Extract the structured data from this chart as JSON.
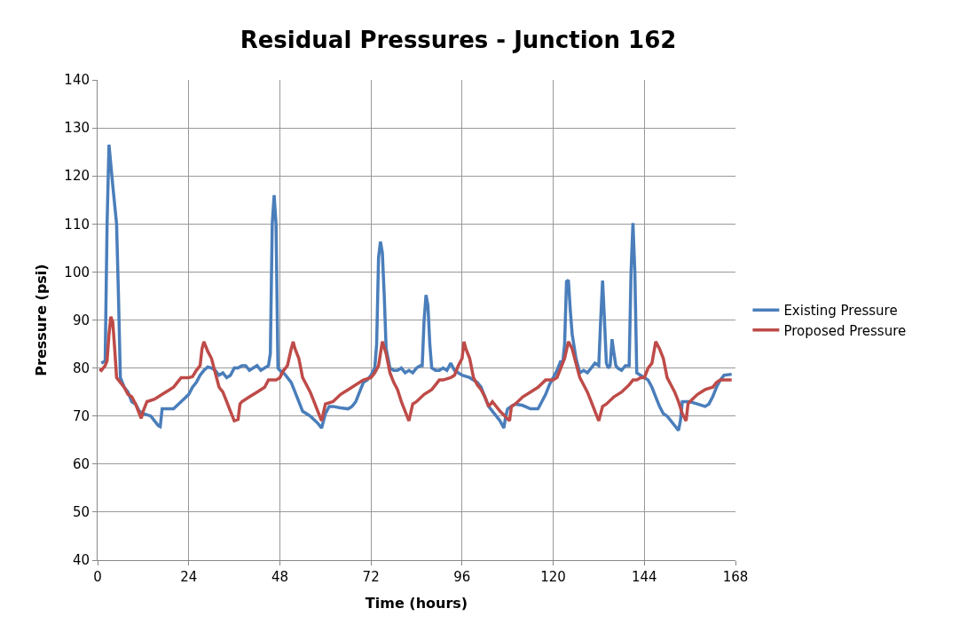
{
  "chart_data": {
    "type": "line",
    "title": "Residual Pressures - Junction 162",
    "xlabel": "Time (hours)",
    "ylabel": "Pressure (psi)",
    "xlim": [
      0,
      168
    ],
    "xticks": [
      0,
      24,
      48,
      72,
      96,
      120,
      144,
      168
    ],
    "ylim": [
      40,
      140
    ],
    "yticks": [
      40,
      50,
      60,
      70,
      80,
      90,
      100,
      110,
      120,
      130,
      140
    ],
    "grid": true,
    "legend": "right",
    "marker": "none",
    "line_style": "solid",
    "series": [
      {
        "name": "Existing Pressure",
        "color": "#4a7ebb",
        "x": [
          1,
          2,
          2.5,
          3,
          4,
          5,
          5.5,
          6,
          7,
          8,
          9,
          10,
          11,
          12,
          14,
          15,
          16,
          16.5,
          17,
          18,
          20,
          22,
          24,
          25,
          26,
          27,
          28,
          29,
          30,
          31,
          32,
          33,
          34,
          35,
          36,
          37,
          38,
          39,
          40,
          41,
          42,
          43,
          44,
          45,
          45.5,
          46,
          46.5,
          47,
          47.5,
          48,
          49,
          50,
          51,
          52,
          53,
          54,
          56,
          58,
          59,
          60,
          61,
          62,
          64,
          66,
          67,
          68,
          69,
          70,
          71,
          72,
          73,
          73.5,
          74,
          74.5,
          75,
          75.5,
          76,
          77,
          78,
          79,
          80,
          81,
          82,
          83,
          84,
          85,
          85.5,
          86,
          86.5,
          87,
          87.5,
          88,
          89,
          90,
          91,
          92,
          93,
          94,
          96,
          98,
          100,
          101,
          102,
          103,
          104,
          105,
          106,
          107,
          107.5,
          108,
          110,
          112,
          114,
          116,
          117,
          118,
          119,
          120,
          121,
          122,
          122.5,
          123,
          123.5,
          124,
          124.5,
          125,
          126,
          127,
          128,
          129,
          130,
          131,
          132,
          132.5,
          133,
          133.5,
          134,
          134.5,
          135,
          135.5,
          136,
          136.5,
          137,
          138,
          139,
          140,
          140.5,
          141,
          141.5,
          142,
          143,
          144,
          145,
          146,
          147,
          148,
          149,
          150,
          151,
          152,
          153,
          153.5,
          154,
          155,
          156,
          158,
          160,
          161,
          162,
          163,
          164,
          165,
          167
        ],
        "values": [
          81,
          81.5,
          110,
          126.5,
          118,
          110,
          95,
          78,
          76,
          75,
          73,
          72.5,
          71,
          70.5,
          70,
          69,
          68,
          67.8,
          71.5,
          71.5,
          71.5,
          73,
          74.5,
          76,
          77,
          78.5,
          79.5,
          80.2,
          80,
          79.5,
          78.5,
          79,
          78,
          78.5,
          80,
          80,
          80.5,
          80.5,
          79.5,
          80,
          80.5,
          79.5,
          80,
          80.5,
          83,
          110,
          116,
          110,
          80,
          79.5,
          79,
          78,
          77,
          75,
          73,
          71,
          70,
          68.5,
          67.5,
          70.5,
          72,
          72,
          71.7,
          71.5,
          72,
          73,
          75,
          77,
          77.5,
          78.5,
          80,
          85,
          103,
          106.3,
          104,
          95,
          84,
          80,
          79.5,
          79.5,
          80,
          79,
          79.5,
          79,
          80,
          80.5,
          80.5,
          90,
          95.2,
          93,
          85,
          80,
          79.5,
          79.5,
          80,
          79.5,
          81,
          79.5,
          78.5,
          78,
          77,
          76,
          74,
          72,
          71,
          70,
          69,
          67.5,
          70,
          71.5,
          72.5,
          72.2,
          71.5,
          71.5,
          73,
          74.5,
          76.5,
          78,
          79.5,
          81.5,
          81,
          85,
          98,
          98.3,
          92,
          87,
          82,
          79,
          79.5,
          79,
          80,
          81,
          80.5,
          90,
          98.2,
          90,
          81,
          80,
          80.5,
          86,
          83,
          80.5,
          80,
          79.5,
          80.5,
          80.5,
          100,
          110.2,
          100,
          79,
          78.5,
          78,
          77.5,
          76,
          74,
          72,
          70.5,
          70,
          69,
          68,
          67,
          69,
          73,
          73,
          73,
          72.5,
          72,
          72.5,
          74,
          76,
          77.5,
          78.5,
          78.7
        ]
      },
      {
        "name": "Proposed Pressure",
        "color": "#be4b48",
        "x": [
          0.5,
          1,
          2,
          2.5,
          3,
          3.5,
          4,
          4.5,
          5,
          6,
          7,
          8,
          9,
          10,
          11,
          11.5,
          12,
          13,
          15,
          17,
          19,
          20,
          21,
          22,
          24,
          25,
          26,
          27,
          27.5,
          28,
          29,
          30,
          31,
          32,
          33,
          34,
          35,
          36,
          37,
          37.5,
          38,
          40,
          42,
          44,
          45,
          47,
          48,
          49,
          50,
          51,
          51.5,
          52,
          53,
          54,
          55,
          56,
          57,
          58,
          59,
          60,
          62,
          64,
          66,
          68,
          70,
          72,
          73,
          74,
          74.5,
          75,
          76,
          77,
          78,
          79,
          80,
          81,
          82,
          83,
          84,
          86,
          88,
          89,
          90,
          91,
          93,
          94,
          95,
          96,
          96.5,
          97,
          98,
          99,
          100,
          101,
          102,
          103,
          104,
          106,
          108.5,
          109,
          110,
          112,
          114,
          116,
          118,
          120,
          121,
          122,
          123,
          124,
          125,
          126,
          127,
          128,
          129,
          130,
          131,
          132,
          133,
          134,
          136,
          138,
          140,
          141,
          142,
          143,
          144,
          145,
          146,
          147,
          148,
          149,
          150,
          151,
          152,
          153,
          154,
          155,
          155.5,
          156,
          158,
          160,
          162,
          163,
          164,
          165,
          167
        ],
        "values": [
          79.8,
          79.5,
          80.5,
          81.5,
          87,
          90.7,
          89.5,
          84,
          78,
          77,
          76,
          74.5,
          74,
          72.5,
          70.5,
          69.5,
          71,
          73,
          73.5,
          74.5,
          75.5,
          76,
          77,
          78,
          78,
          78.2,
          79.5,
          80.5,
          84,
          85.5,
          83.5,
          82,
          79,
          76,
          75,
          73,
          71,
          69,
          69.3,
          72.5,
          73,
          74,
          75,
          76,
          77.5,
          77.5,
          78,
          79.5,
          80.5,
          84,
          85.5,
          84,
          82,
          78,
          76.5,
          75,
          73,
          71,
          69,
          72.5,
          73,
          74.5,
          75.5,
          76.5,
          77.5,
          78,
          79,
          80.5,
          83,
          85.5,
          83,
          79,
          77,
          75.5,
          73,
          71,
          69,
          72.5,
          73,
          74.5,
          75.5,
          76.5,
          77.5,
          77.5,
          78,
          78.5,
          80.5,
          82,
          85.5,
          84,
          82,
          78,
          76.5,
          75.5,
          74,
          72,
          73,
          71,
          69,
          72,
          72.5,
          74,
          75,
          76,
          77.5,
          77.5,
          78,
          80,
          82,
          85.5,
          84,
          81,
          78,
          76.5,
          75,
          73,
          71,
          69,
          72,
          72.5,
          74,
          75,
          76.5,
          77.5,
          77.5,
          78,
          78,
          80,
          81,
          85.5,
          84,
          82,
          78,
          76.5,
          75,
          73,
          70.5,
          69,
          72.5,
          73,
          74.5,
          75.5,
          76,
          77,
          77.5,
          77.5,
          77.5
        ]
      }
    ]
  }
}
